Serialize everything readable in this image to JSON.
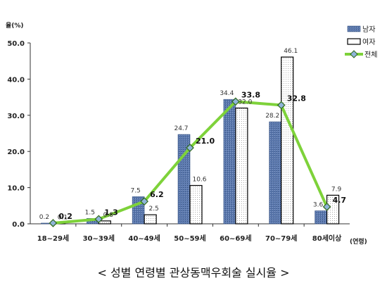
{
  "chart_data": {
    "type": "bar",
    "title": "",
    "caption": "< 성별 연령별 관상동맥우회술 실시율 >",
    "ylabel": "율(%)",
    "xlabel": "(연령)",
    "ylim": [
      0,
      50
    ],
    "yticks": [
      "0.0",
      "10.0",
      "20.0",
      "30.0",
      "40.0",
      "50.0"
    ],
    "ytick_values": [
      0,
      10,
      20,
      30,
      40,
      50
    ],
    "categories": [
      "18~29세",
      "30~39세",
      "40~49세",
      "50~59세",
      "60~69세",
      "70~79세",
      "80세이상"
    ],
    "series": [
      {
        "name": "남자",
        "kind": "bar",
        "values": [
          0.2,
          1.5,
          7.5,
          24.7,
          34.4,
          28.2,
          3.6
        ],
        "labels": [
          "0.2",
          "1.5",
          "7.5",
          "24.7",
          "34.4",
          "28.2",
          "3.6"
        ]
      },
      {
        "name": "여자",
        "kind": "bar",
        "values": [
          0.1,
          0.8,
          2.5,
          10.6,
          32.0,
          46.1,
          7.9
        ],
        "labels": [
          "0.1",
          "0.8",
          "2.5",
          "10.6",
          "32.0",
          "46.1",
          "7.9"
        ]
      },
      {
        "name": "전체",
        "kind": "line",
        "values": [
          0.2,
          1.3,
          6.2,
          21.0,
          33.8,
          32.8,
          4.7
        ],
        "labels": [
          "0.2",
          "1.3",
          "6.2",
          "21.0",
          "33.8",
          "32.8",
          "4.7"
        ]
      }
    ],
    "legend_position": "top-right",
    "colors": {
      "male": "#5b78ad",
      "female": "#ffffff",
      "total_line": "#7ed23a",
      "total_marker": "#8fb3d9"
    }
  }
}
